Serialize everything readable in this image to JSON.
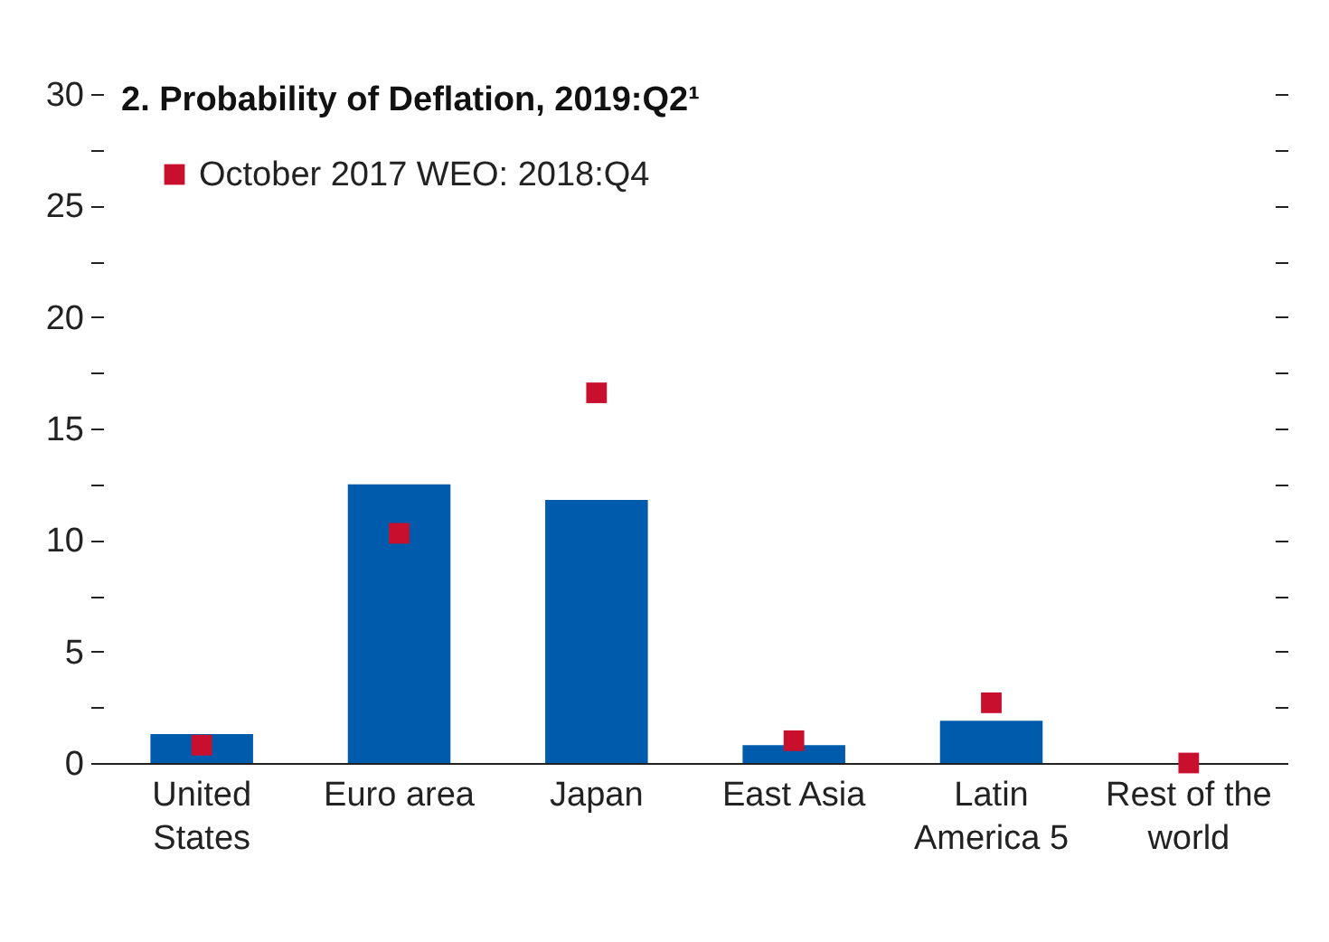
{
  "chart_data": {
    "type": "bar",
    "title": "2. Probability of Deflation, 2019:Q2¹",
    "categories": [
      "United States",
      "Euro area",
      "Japan",
      "East Asia",
      "Latin America 5",
      "Rest of the world"
    ],
    "series": [
      {
        "color": "#005bac",
        "values": [
          1.3,
          12.5,
          11.8,
          0.8,
          1.9,
          0
        ]
      },
      {
        "type": "scatter",
        "name": "October 2017 WEO: 2018:Q4",
        "color": "#c8102e",
        "x": [
          "United States",
          "Euro area",
          "Japan",
          "East Asia",
          "Latin America 5",
          "Rest of the world"
        ],
        "values": [
          0.8,
          10.3,
          16.6,
          1,
          2.7,
          0
        ]
      }
    ],
    "ylim": [
      0,
      30
    ],
    "yticks": [
      0,
      {
        "value": 2.5,
        "label": null
      },
      5,
      {
        "value": 7.5,
        "label": null
      },
      10,
      {
        "value": 12.5,
        "label": null
      },
      15,
      {
        "value": 17.5,
        "label": null
      },
      20,
      {
        "value": 22.5,
        "label": null
      },
      25,
      {
        "value": 27.5,
        "label": null
      },
      30
    ],
    "grid": false,
    "legend": "top left",
    "marker": "square"
  }
}
